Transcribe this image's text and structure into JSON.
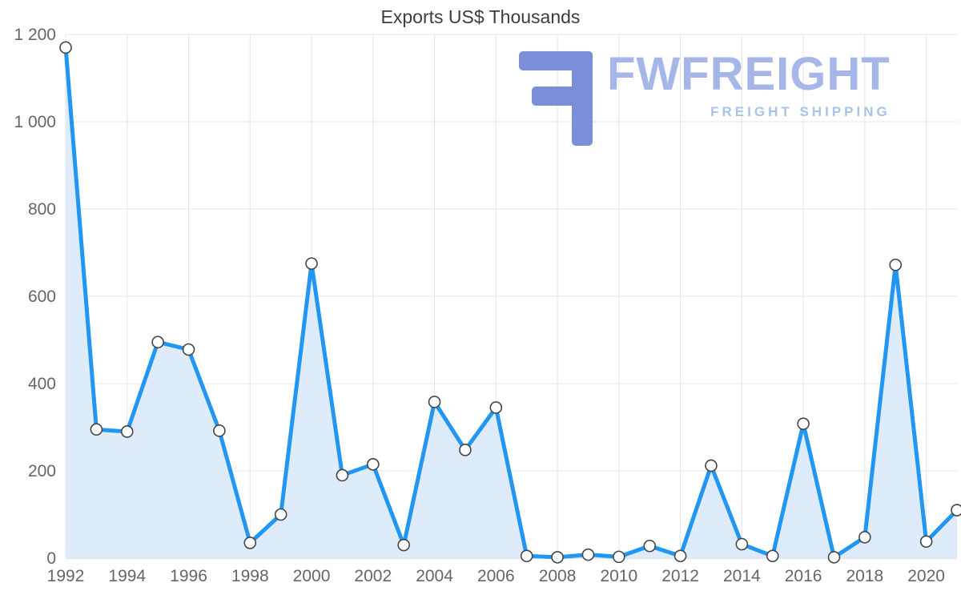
{
  "title": "Exports US$ Thousands",
  "watermark": {
    "brand": "FWFREIGHT",
    "tagline": "FREIGHT SHIPPING",
    "icon": "fwfreight-logo-icon",
    "icon_color": "#7b8ed8",
    "brand_color": "#a6b6e8",
    "tagline_color": "#a6c4ea"
  },
  "chart_data": {
    "type": "area",
    "title": "Exports US$ Thousands",
    "x": [
      1992,
      1993,
      1994,
      1995,
      1996,
      1997,
      1998,
      1999,
      2000,
      2001,
      2002,
      2003,
      2004,
      2005,
      2006,
      2007,
      2008,
      2009,
      2010,
      2011,
      2012,
      2013,
      2014,
      2015,
      2016,
      2017,
      2018,
      2019,
      2020,
      2021
    ],
    "values": [
      1170,
      295,
      290,
      495,
      478,
      292,
      35,
      100,
      675,
      190,
      215,
      30,
      358,
      248,
      345,
      5,
      2,
      8,
      3,
      28,
      5,
      212,
      32,
      5,
      308,
      2,
      48,
      672,
      38,
      110
    ],
    "x_tick_years": [
      1992,
      1994,
      1996,
      1998,
      2000,
      2002,
      2004,
      2006,
      2008,
      2010,
      2012,
      2014,
      2016,
      2018,
      2020
    ],
    "x_tick_labels": [
      "1992",
      "1994",
      "1996",
      "1998",
      "2000",
      "2002",
      "2004",
      "2006",
      "2008",
      "2010",
      "2012",
      "2014",
      "2016",
      "2018",
      "2020"
    ],
    "y_ticks": [
      0,
      200,
      400,
      600,
      800,
      1000,
      1200
    ],
    "y_tick_labels": [
      "0",
      "200",
      "400",
      "600",
      "800",
      "1 000",
      "1 200"
    ],
    "xlim": [
      1992,
      2021
    ],
    "ylim": [
      0,
      1200
    ],
    "grid": true,
    "legend": "none",
    "xlabel": "",
    "ylabel": "",
    "line_color": "#2196f3",
    "area_color": "#ddebfb",
    "marker_fill": "#ffffff",
    "marker_stroke": "#454545",
    "grid_color": "#e4e4e4",
    "axis_line_color": "#c8c8c8",
    "tick_label_color": "#666666"
  }
}
